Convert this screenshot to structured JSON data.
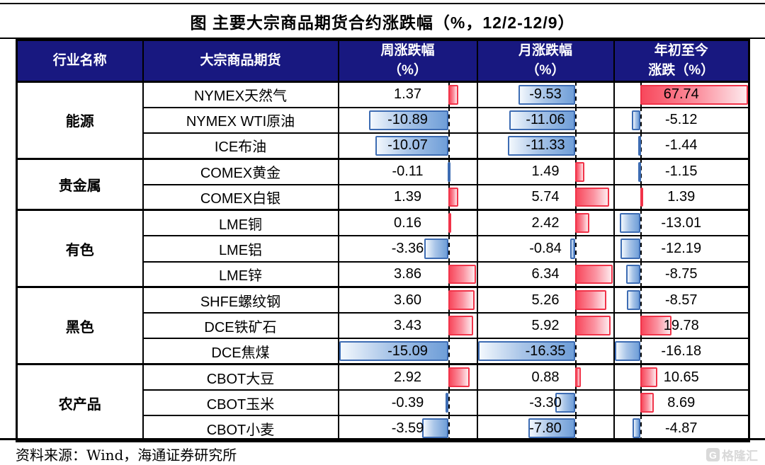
{
  "title": "图  主要大宗商品期货合约涨跌幅（%，12/2-12/9）",
  "header": {
    "industry": "行业名称",
    "commodity": "大宗商品期货",
    "week": "周涨跌幅\n（%）",
    "month": "月涨跌幅\n（%）",
    "ytd": "年初至今\n涨跌（%）"
  },
  "rows": [
    {
      "industry": "能源",
      "span": 3,
      "name": "NYMEX天然气",
      "week": "1.37",
      "month": "-9.53",
      "ytd": "67.74"
    },
    {
      "name": "NYMEX WTI原油",
      "week": "-10.89",
      "month": "-11.06",
      "ytd": "-5.12"
    },
    {
      "name": "ICE布油",
      "week": "-10.07",
      "month": "-11.33",
      "ytd": "-1.44"
    },
    {
      "industry": "贵金属",
      "span": 2,
      "name": "COMEX黄金",
      "week": "-0.11",
      "month": "1.49",
      "ytd": "-1.15"
    },
    {
      "name": "COMEX白银",
      "week": "1.39",
      "month": "5.74",
      "ytd": "1.39"
    },
    {
      "industry": "有色",
      "span": 3,
      "name": "LME铜",
      "week": "0.16",
      "month": "2.42",
      "ytd": "-13.01"
    },
    {
      "name": "LME铝",
      "week": "-3.36",
      "month": "-0.84",
      "ytd": "-12.19"
    },
    {
      "name": "LME锌",
      "week": "3.86",
      "month": "6.34",
      "ytd": "-8.75"
    },
    {
      "industry": "黑色",
      "span": 3,
      "name": "SHFE螺纹钢",
      "week": "3.60",
      "month": "5.26",
      "ytd": "-8.57"
    },
    {
      "name": "DCE铁矿石",
      "week": "3.43",
      "month": "5.92",
      "ytd": "19.78"
    },
    {
      "name": "DCE焦煤",
      "week": "-15.09",
      "month": "-16.35",
      "ytd": "-16.18"
    },
    {
      "industry": "农产品",
      "span": 3,
      "name": "CBOT大豆",
      "week": "2.92",
      "month": "0.88",
      "ytd": "10.65"
    },
    {
      "name": "CBOT玉米",
      "week": "-0.39",
      "month": "-3.30",
      "ytd": "8.69"
    },
    {
      "name": "CBOT小麦",
      "week": "-3.59",
      "month": "-7.80",
      "ytd": "-4.87"
    }
  ],
  "footer": {
    "source": "资料来源：Wind，海通证券研究所"
  },
  "watermark": {
    "icon_letter": "G",
    "text": "格隆汇"
  },
  "colors": {
    "header_bg": "#181880",
    "header_text": "#ffffff",
    "positive_bar": "#f8485c",
    "positive_border": "#f13349",
    "negative_bar": "#6f9ed8",
    "negative_border": "#3d6cb3",
    "zero_axis": "#000000"
  },
  "chart_data": {
    "type": "table",
    "title": "主要大宗商品期货合约涨跌幅（%，12/2-12/9）",
    "columns": [
      "行业名称",
      "大宗商品期货",
      "周涨跌幅（%）",
      "月涨跌幅（%）",
      "年初至今涨跌（%）"
    ],
    "groups": [
      {
        "industry": "能源",
        "items": [
          "NYMEX天然气",
          "NYMEX WTI原油",
          "ICE布油"
        ]
      },
      {
        "industry": "贵金属",
        "items": [
          "COMEX黄金",
          "COMEX白银"
        ]
      },
      {
        "industry": "有色",
        "items": [
          "LME铜",
          "LME铝",
          "LME锌"
        ]
      },
      {
        "industry": "黑色",
        "items": [
          "SHFE螺纹钢",
          "DCE铁矿石",
          "DCE焦煤"
        ]
      },
      {
        "industry": "农产品",
        "items": [
          "CBOT大豆",
          "CBOT玉米",
          "CBOT小麦"
        ]
      }
    ],
    "categories": [
      "NYMEX天然气",
      "NYMEX WTI原油",
      "ICE布油",
      "COMEX黄金",
      "COMEX白银",
      "LME铜",
      "LME铝",
      "LME锌",
      "SHFE螺纹钢",
      "DCE铁矿石",
      "DCE焦煤",
      "CBOT大豆",
      "CBOT玉米",
      "CBOT小麦"
    ],
    "series": [
      {
        "name": "周涨跌幅（%）",
        "values": [
          1.37,
          -10.89,
          -10.07,
          -0.11,
          1.39,
          0.16,
          -3.36,
          3.86,
          3.6,
          3.43,
          -15.09,
          2.92,
          -0.39,
          -3.59
        ]
      },
      {
        "name": "月涨跌幅（%）",
        "values": [
          -9.53,
          -11.06,
          -11.33,
          1.49,
          5.74,
          2.42,
          -0.84,
          6.34,
          5.26,
          5.92,
          -16.35,
          0.88,
          -3.3,
          -7.8
        ]
      },
      {
        "name": "年初至今涨跌（%）",
        "values": [
          67.74,
          -5.12,
          -1.44,
          -1.15,
          1.39,
          -13.01,
          -12.19,
          -8.75,
          -8.57,
          19.78,
          -16.18,
          10.65,
          8.69,
          -4.87
        ]
      }
    ],
    "bar_rendering": "excel-style data bars scaled per column min/max, red=positive gradient fading right, blue=negative gradient fading left, dashed black zero axis per column"
  }
}
